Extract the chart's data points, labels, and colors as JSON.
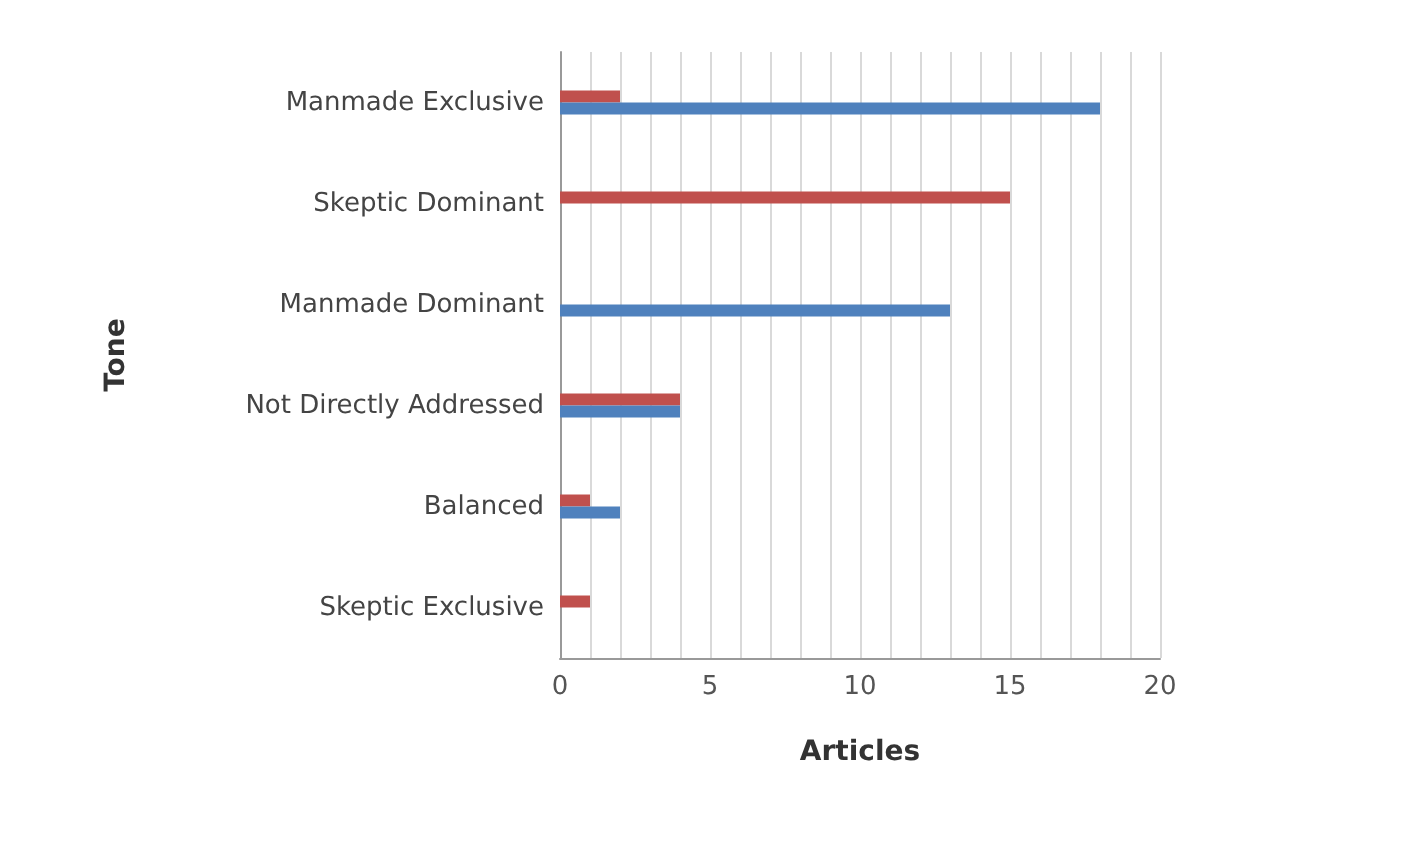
{
  "chart_data": {
    "type": "bar",
    "orientation": "horizontal",
    "xlabel": "Articles",
    "ylabel": "Tone",
    "categories": [
      "Manmade Exclusive",
      "Skeptic Dominant",
      "Manmade Dominant",
      "Not Directly Addressed",
      "Balanced",
      "Skeptic Exclusive"
    ],
    "series": [
      {
        "color": "#c0504d",
        "values": [
          2,
          15,
          0,
          4,
          1,
          1
        ]
      },
      {
        "color": "#4f81bd",
        "values": [
          18,
          0,
          13,
          4,
          2,
          0
        ]
      }
    ],
    "xlim": [
      0,
      20
    ],
    "xticks": [
      0,
      {
        "value": 1,
        "label": null
      },
      {
        "value": 2,
        "label": null
      },
      {
        "value": 3,
        "label": null
      },
      {
        "value": 4,
        "label": null
      },
      5,
      {
        "value": 6,
        "label": null
      },
      {
        "value": 7,
        "label": null
      },
      {
        "value": 8,
        "label": null
      },
      {
        "value": 9,
        "label": null
      },
      10,
      {
        "value": 11,
        "label": null
      },
      {
        "value": 12,
        "label": null
      },
      {
        "value": 13,
        "label": null
      },
      {
        "value": 14,
        "label": null
      },
      15,
      {
        "value": 16,
        "label": null
      },
      {
        "value": 17,
        "label": null
      },
      {
        "value": 18,
        "label": null
      },
      {
        "value": 19,
        "label": null
      },
      20
    ],
    "grid": "x"
  }
}
